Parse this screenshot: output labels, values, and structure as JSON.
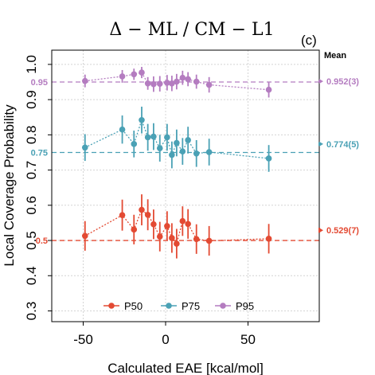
{
  "chart_data": {
    "type": "scatter",
    "title": "Δ − ML / CM − L1",
    "panel_label": "(c)",
    "mean_header": "Mean",
    "xlabel": "Calculated EAE [kcal/mol]",
    "ylabel": "Local Coverage Probability",
    "xlim": [
      -70,
      92
    ],
    "ylim": [
      0.27,
      1.03
    ],
    "xticks": [
      -50,
      0,
      50
    ],
    "xtick_labels": [
      "-50",
      "0",
      "50"
    ],
    "yticks": [
      0.3,
      0.4,
      0.5,
      0.6,
      0.7,
      0.8,
      0.9,
      1.0
    ],
    "ytick_labels": [
      "0.3",
      "0.4",
      "0.5",
      "0.6",
      "0.7",
      "0.8",
      "0.9",
      "1.0"
    ],
    "grid": true,
    "legend_position": "bottom",
    "series": [
      {
        "name": "P50",
        "color": "#e34a33",
        "target": 0.5,
        "target_label": "0.5",
        "mean": 0.529,
        "mean_err": 0.007,
        "mean_label": "0.529(7)",
        "points": [
          {
            "x": -48.9,
            "y": 0.513,
            "err": 0.042
          },
          {
            "x": -26.3,
            "y": 0.572,
            "err": 0.044
          },
          {
            "x": -19.2,
            "y": 0.531,
            "err": 0.042
          },
          {
            "x": -14.5,
            "y": 0.587,
            "err": 0.044
          },
          {
            "x": -10.8,
            "y": 0.573,
            "err": 0.044
          },
          {
            "x": -7.3,
            "y": 0.546,
            "err": 0.042
          },
          {
            "x": -3.5,
            "y": 0.511,
            "err": 0.042
          },
          {
            "x": 0.9,
            "y": 0.541,
            "err": 0.042
          },
          {
            "x": 3.8,
            "y": 0.507,
            "err": 0.042
          },
          {
            "x": 6.7,
            "y": 0.491,
            "err": 0.042
          },
          {
            "x": 10.3,
            "y": 0.555,
            "err": 0.042
          },
          {
            "x": 13.6,
            "y": 0.547,
            "err": 0.042
          },
          {
            "x": 18.7,
            "y": 0.504,
            "err": 0.042
          },
          {
            "x": 26.4,
            "y": 0.499,
            "err": 0.042
          },
          {
            "x": 62.6,
            "y": 0.505,
            "err": 0.042
          }
        ]
      },
      {
        "name": "P75",
        "color": "#4aa1b5",
        "target": 0.75,
        "target_label": "0.75",
        "mean": 0.774,
        "mean_err": 0.005,
        "mean_label": "0.774(5)",
        "points": [
          {
            "x": -48.9,
            "y": 0.764,
            "err": 0.038
          },
          {
            "x": -26.3,
            "y": 0.815,
            "err": 0.04
          },
          {
            "x": -19.2,
            "y": 0.774,
            "err": 0.038
          },
          {
            "x": -14.5,
            "y": 0.842,
            "err": 0.038
          },
          {
            "x": -10.8,
            "y": 0.793,
            "err": 0.038
          },
          {
            "x": -7.3,
            "y": 0.795,
            "err": 0.038
          },
          {
            "x": -3.5,
            "y": 0.762,
            "err": 0.038
          },
          {
            "x": 0.9,
            "y": 0.793,
            "err": 0.038
          },
          {
            "x": 3.8,
            "y": 0.743,
            "err": 0.038
          },
          {
            "x": 6.7,
            "y": 0.777,
            "err": 0.038
          },
          {
            "x": 10.3,
            "y": 0.753,
            "err": 0.038
          },
          {
            "x": 13.6,
            "y": 0.785,
            "err": 0.038
          },
          {
            "x": 18.7,
            "y": 0.747,
            "err": 0.038
          },
          {
            "x": 26.4,
            "y": 0.751,
            "err": 0.038
          },
          {
            "x": 62.6,
            "y": 0.733,
            "err": 0.038
          }
        ]
      },
      {
        "name": "P95",
        "color": "#b47cc0",
        "target": 0.95,
        "target_label": "0.95",
        "mean": 0.952,
        "mean_err": 0.003,
        "mean_label": "0.952(3)",
        "points": [
          {
            "x": -48.9,
            "y": 0.953,
            "err": 0.018
          },
          {
            "x": -26.3,
            "y": 0.966,
            "err": 0.018
          },
          {
            "x": -19.2,
            "y": 0.972,
            "err": 0.016
          },
          {
            "x": -14.5,
            "y": 0.977,
            "err": 0.016
          },
          {
            "x": -10.8,
            "y": 0.946,
            "err": 0.018
          },
          {
            "x": -7.3,
            "y": 0.944,
            "err": 0.022
          },
          {
            "x": -3.5,
            "y": 0.945,
            "err": 0.022
          },
          {
            "x": 0.9,
            "y": 0.948,
            "err": 0.022
          },
          {
            "x": 3.8,
            "y": 0.946,
            "err": 0.022
          },
          {
            "x": 6.7,
            "y": 0.951,
            "err": 0.022
          },
          {
            "x": 10.3,
            "y": 0.962,
            "err": 0.02
          },
          {
            "x": 13.6,
            "y": 0.958,
            "err": 0.02
          },
          {
            "x": 18.7,
            "y": 0.951,
            "err": 0.02
          },
          {
            "x": 26.4,
            "y": 0.942,
            "err": 0.022
          },
          {
            "x": 62.6,
            "y": 0.928,
            "err": 0.022
          }
        ]
      }
    ]
  }
}
